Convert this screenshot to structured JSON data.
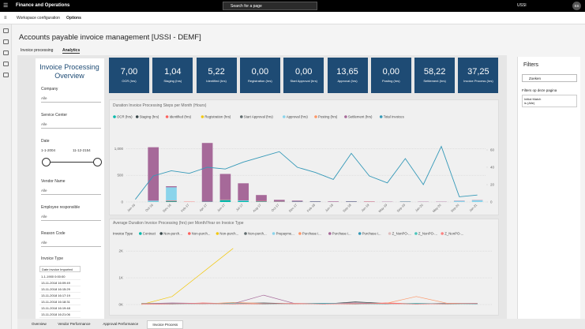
{
  "app": {
    "name": "Finance and Operations",
    "search": "Search for a page",
    "company": "USSI",
    "user": "SS"
  },
  "breadcrumb": {
    "workspace": "Workspace configuration",
    "options": "Options"
  },
  "page": {
    "title": "Accounts payable invoice management [USSI - DEMF]",
    "tabs": [
      "Invoice processing",
      "Analytics"
    ]
  },
  "slicers": {
    "title": "Invoice Processing Overview",
    "company": {
      "label": "Company",
      "value": "Alle"
    },
    "service_center": {
      "label": "Service Center",
      "value": "Alle"
    },
    "date": {
      "label": "Date",
      "from": "1-1-2004",
      "to": "11-12-2154"
    },
    "vendor_name": {
      "label": "Vendor Name",
      "value": "Alle"
    },
    "employee": {
      "label": "Employee responsible",
      "value": "Alle"
    },
    "reason_code": {
      "label": "Reason Code",
      "value": "Alle"
    },
    "invoice_type": "Invoice Type",
    "list_header": "Date invoice Imported",
    "list": [
      "1-1-1900 0:00:00",
      "13-11-2018 16:09:49",
      "13-11-2018 16:15:29",
      "13-11-2018 16:17:19",
      "13-11-2018 16:18:31",
      "13-11-2018 16:19:48",
      "13-11-2018 16:21:06"
    ]
  },
  "kpis": [
    {
      "value": "7,00",
      "label": "OCR (hrs)"
    },
    {
      "value": "1,04",
      "label": "Staging (hrs)"
    },
    {
      "value": "5,22",
      "label": "Identified (hrs)"
    },
    {
      "value": "0,00",
      "label": "Registration (hrs)"
    },
    {
      "value": "0,00",
      "label": "Start Approval (hrs)"
    },
    {
      "value": "13,65",
      "label": "Approval (hrs)"
    },
    {
      "value": "0,00",
      "label": "Posting (hrs)"
    },
    {
      "value": "58,22",
      "label": "Settlement (hrs)"
    },
    {
      "value": "37,25",
      "label": "Invoice Process (hrs)"
    }
  ],
  "chart_data": [
    {
      "type": "bar",
      "title": "Duration Invoice Processing Steps per Month (Hours)",
      "categories": [
        "Jan-16",
        "Oct-16",
        "Dec-16",
        "Feb-17",
        "Apr-17",
        "Jun-17",
        "Jul-17",
        "Aug-17",
        "Oct-17",
        "Dec-17",
        "Feb-18",
        "Jun-18",
        "Sep-18",
        "Jan-19",
        "May-19",
        "Sep-19",
        "Jan-20",
        "May-20",
        "Sep-20",
        "Jan-21"
      ],
      "ylim": [
        0,
        1300
      ],
      "yticks": [
        0,
        500,
        {
          "value": 1000,
          "label": "1,000"
        }
      ],
      "y2lim": [
        0,
        80
      ],
      "y2ticks": [
        0,
        20,
        40,
        60
      ],
      "series": [
        {
          "name": "OCR (hrs)",
          "color": "#01b8aa",
          "values": [
            0,
            5,
            10,
            0,
            5,
            30,
            20,
            10,
            5,
            5,
            5,
            0,
            5,
            0,
            0,
            5,
            0,
            0,
            0,
            0
          ]
        },
        {
          "name": "Staging (hrs)",
          "color": "#374649",
          "values": [
            0,
            0,
            5,
            0,
            0,
            5,
            0,
            0,
            0,
            0,
            0,
            0,
            0,
            0,
            0,
            0,
            0,
            0,
            0,
            0
          ]
        },
        {
          "name": "Identified (hrs)",
          "color": "#fd625e",
          "values": [
            0,
            0,
            10,
            5,
            0,
            5,
            0,
            10,
            5,
            0,
            0,
            0,
            0,
            5,
            0,
            0,
            0,
            0,
            0,
            0
          ]
        },
        {
          "name": "Registration (hrs)",
          "color": "#f2c80f",
          "values": [
            0,
            0,
            0,
            0,
            0,
            0,
            0,
            0,
            0,
            0,
            0,
            0,
            0,
            0,
            0,
            0,
            0,
            0,
            0,
            0
          ]
        },
        {
          "name": "Start Approval (hrs)",
          "color": "#5f6b6d",
          "values": [
            0,
            0,
            0,
            0,
            0,
            0,
            0,
            0,
            0,
            0,
            0,
            0,
            0,
            0,
            0,
            0,
            0,
            0,
            0,
            0
          ]
        },
        {
          "name": "Approval (hrs)",
          "color": "#8ad4eb",
          "values": [
            0,
            20,
            250,
            0,
            0,
            5,
            10,
            0,
            0,
            0,
            0,
            0,
            0,
            0,
            0,
            0,
            0,
            0,
            20,
            30
          ]
        },
        {
          "name": "Posting (hrs)",
          "color": "#fe9666",
          "values": [
            0,
            0,
            0,
            0,
            0,
            0,
            0,
            0,
            0,
            0,
            0,
            0,
            0,
            0,
            0,
            0,
            0,
            0,
            0,
            0
          ]
        },
        {
          "name": "Settlement (hrs)",
          "color": "#a66999",
          "values": [
            0,
            1000,
            20,
            0,
            1100,
            480,
            320,
            110,
            30,
            20,
            10,
            10,
            10,
            5,
            5,
            5,
            5,
            5,
            5,
            5
          ]
        },
        {
          "name": "Total Invoices",
          "color": "#3599b8",
          "axis": "y2",
          "values": [
            3,
            30,
            36,
            33,
            40,
            38,
            46,
            52,
            58,
            40,
            34,
            26,
            56,
            30,
            22,
            50,
            20,
            64,
            6,
            8
          ]
        }
      ]
    },
    {
      "type": "line",
      "title": "Average Duration Invoice Processing (hrs) per Month/Year on Invoice Type",
      "legend_title": "Invoice Type",
      "categories": [
        null,
        null,
        null,
        null,
        null,
        null,
        null,
        null,
        null,
        null,
        null,
        null
      ],
      "ylim": [
        0,
        2300
      ],
      "yticks": [
        {
          "value": 0,
          "label": "0K"
        },
        {
          "value": 1000,
          "label": "1K"
        },
        {
          "value": 2000,
          "label": "2K"
        }
      ],
      "series": [
        {
          "name": "Contract",
          "color": "#01b8aa",
          "values": [
            20,
            40,
            30,
            60,
            20,
            30,
            50,
            20,
            40,
            30,
            20,
            30
          ]
        },
        {
          "name": "Non-purch...",
          "color": "#374649",
          "values": [
            30,
            50,
            20,
            40,
            60,
            30,
            20,
            100,
            40,
            20,
            50,
            30
          ]
        },
        {
          "name": "Non-purch...",
          "color": "#fd625e",
          "values": [
            10,
            20,
            60,
            30,
            20,
            40,
            30,
            20,
            60,
            30,
            20,
            40
          ]
        },
        {
          "name": "Non-purch...",
          "color": "#f2c80f",
          "values": [
            0,
            300,
            1200,
            2100,
            null,
            null,
            null,
            null,
            null,
            null,
            null,
            null
          ]
        },
        {
          "name": "Non-purch...",
          "color": "#5f6b6d",
          "values": [
            40,
            20,
            30,
            50,
            30,
            20,
            40,
            60,
            30,
            20,
            30,
            40
          ]
        },
        {
          "name": "Prepayme...",
          "color": "#8ad4eb",
          "values": [
            20,
            30,
            20,
            40,
            20,
            30,
            20,
            40,
            30,
            20,
            40,
            20
          ]
        },
        {
          "name": "Purchase i...",
          "color": "#fe9666",
          "values": [
            50,
            30,
            20,
            80,
            40,
            20,
            30,
            20,
            40,
            300,
            50,
            30
          ]
        },
        {
          "name": "Purchase i...",
          "color": "#a66999",
          "values": [
            30,
            60,
            40,
            30,
            350,
            40,
            30,
            60,
            20,
            40,
            30,
            20
          ]
        },
        {
          "name": "Purchase i...",
          "color": "#3599b8",
          "values": [
            20,
            40,
            30,
            20,
            40,
            30,
            50,
            30,
            20,
            40,
            30,
            50
          ]
        },
        {
          "name": "Z_NonPO-...",
          "color": "#dfbfbf",
          "values": [
            10,
            30,
            20,
            40,
            30,
            20,
            30,
            40,
            20,
            30,
            20,
            30
          ]
        },
        {
          "name": "Z_NonPO-...",
          "color": "#4ac5bb",
          "values": [
            30,
            20,
            40,
            30,
            20,
            40,
            30,
            20,
            30,
            40,
            20,
            30
          ]
        },
        {
          "name": "Z_NonPO-...",
          "color": "#fb8281",
          "values": [
            20,
            30,
            40,
            20,
            30,
            40,
            20,
            30,
            40,
            20,
            30,
            40
          ]
        }
      ]
    }
  ],
  "report_tabs": [
    "Overview",
    "Vendor Performance",
    "Approval Performance",
    "Invoice Process"
  ],
  "filters": {
    "title": "Filters",
    "search": "Zoeken",
    "section": "Filters op deze pagina",
    "card_name": "Initial Match",
    "card_value": "is (Alle)"
  }
}
